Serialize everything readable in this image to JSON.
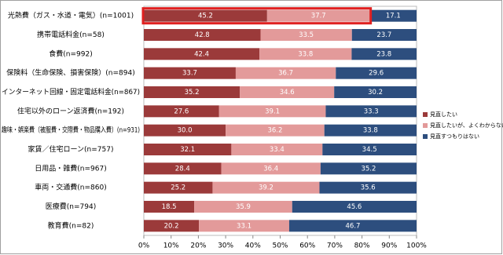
{
  "chart_data": {
    "type": "stacked-bar-100",
    "categories": [
      "光熱費（ガス・水道・電気）(n=1001)",
      "携帯電話料金(n=58)",
      "食費(n=992)",
      "保険料（生命保険、損害保険）(n=894)",
      "インターネット回線・固定電話料金(n=867)",
      "住宅以外のローン返済費(n=192)",
      "趣味・娯楽費（被服費・交際費・物品購入費）(n=931)",
      "家賃／住宅ローン(n=757)",
      "日用品・雑費(n=967)",
      "車両・交通費(n=860)",
      "医療費(n=794)",
      "教育費(n=82)"
    ],
    "series": [
      {
        "name": "見直したい",
        "color": "#9b3a3a",
        "values": [
          45.2,
          42.8,
          42.4,
          33.7,
          35.2,
          27.6,
          30.0,
          32.1,
          28.4,
          25.2,
          18.5,
          20.2
        ],
        "value_labels": [
          "45.2",
          "42.8",
          "42.4",
          "33.7",
          "35.2",
          "27.6",
          "30.0",
          "32.1",
          "28.4",
          "25.2",
          "18.5",
          "20.2"
        ]
      },
      {
        "name": "見直したいが、よくわからない",
        "color": "#e39a9a",
        "values": [
          37.7,
          33.5,
          33.8,
          36.7,
          34.6,
          39.1,
          36.2,
          33.4,
          36.4,
          39.2,
          35.9,
          33.1
        ]
      },
      {
        "name": "見直すつもりはない",
        "color": "#2d4e7e",
        "values": [
          17.1,
          23.7,
          23.8,
          29.6,
          30.2,
          33.3,
          33.8,
          34.5,
          35.2,
          35.6,
          45.6,
          46.7
        ]
      }
    ],
    "xlim": [
      0,
      100
    ],
    "xticks": [
      {
        "value": 0,
        "label": "0%"
      },
      {
        "value": 10,
        "label": "10%"
      },
      {
        "value": 20,
        "label": "20%"
      },
      {
        "value": 30,
        "label": "30%"
      },
      {
        "value": 40,
        "label": "40%"
      },
      {
        "value": 50,
        "label": "50%"
      },
      {
        "value": 60,
        "label": "60%"
      },
      {
        "value": 70,
        "label": "70%"
      },
      {
        "value": 80,
        "label": "80%"
      },
      {
        "value": 90,
        "label": "90%"
      },
      {
        "value": 100,
        "label": "100%"
      }
    ],
    "legend": "right"
  }
}
